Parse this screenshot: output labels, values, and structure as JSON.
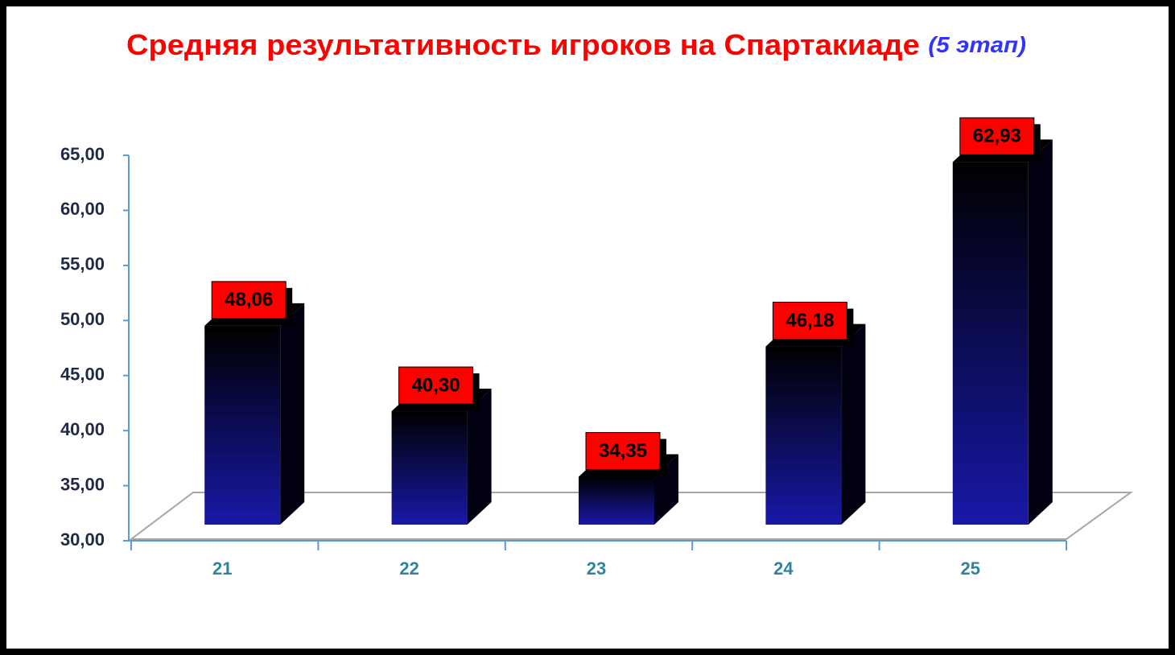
{
  "chart_data": {
    "type": "bar3d",
    "title": "Средняя результативность игроков на Спартакиаде",
    "subtitle": "(5 этап)",
    "categories": [
      "21",
      "22",
      "23",
      "24",
      "25"
    ],
    "values": [
      48.06,
      40.3,
      34.35,
      46.18,
      62.93
    ],
    "value_labels": [
      "48,06",
      "40,30",
      "34,35",
      "46,18",
      "62,93"
    ],
    "color": "#1818a8",
    "ylim": [
      30,
      65
    ],
    "yticks": [
      {
        "value": 30,
        "label": "30,00"
      },
      {
        "value": 35,
        "label": "35,00"
      },
      {
        "value": 40,
        "label": "40,00"
      },
      {
        "value": 45,
        "label": "45,00"
      },
      {
        "value": 50,
        "label": "50,00"
      },
      {
        "value": 55,
        "label": "55,00"
      },
      {
        "value": 60,
        "label": "60,00"
      },
      {
        "value": 65,
        "label": "65,00"
      }
    ],
    "grid": false
  }
}
